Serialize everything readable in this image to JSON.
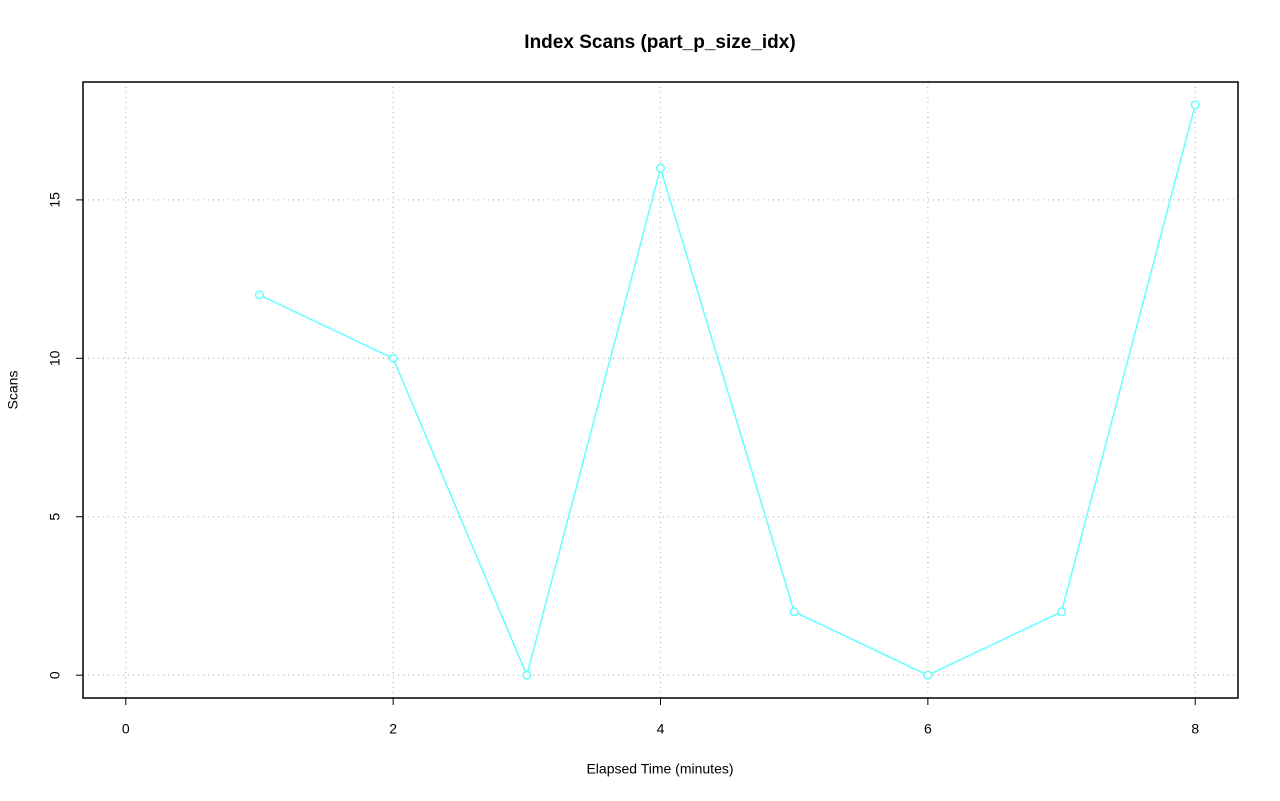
{
  "chart_data": {
    "type": "line",
    "title": "Index Scans (part_p_size_idx)",
    "x_label": "Elapsed Time (minutes)",
    "y_label": "Scans",
    "x": [
      1,
      2,
      3,
      4,
      5,
      6,
      7,
      8
    ],
    "values": [
      12,
      10,
      0,
      16,
      2,
      0,
      2,
      18
    ],
    "color": "#66ffff",
    "xlim": [
      -0.32,
      8.32
    ],
    "xticks": [
      0,
      2,
      4,
      6,
      8
    ],
    "ylim": [
      -0.72,
      18.72
    ],
    "yticks": [
      0,
      5,
      10,
      15
    ],
    "grid": true
  }
}
